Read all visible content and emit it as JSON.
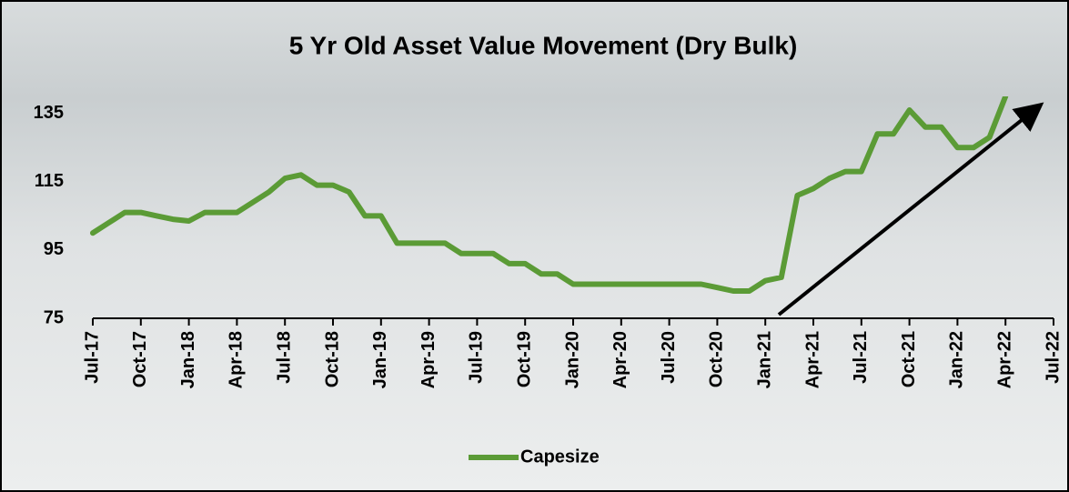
{
  "chart_data": {
    "type": "line",
    "title": "5 Yr Old Asset Value Movement (Dry Bulk)",
    "categories": [
      "Jul-17",
      null,
      null,
      "Oct-17",
      null,
      null,
      "Jan-18",
      null,
      null,
      "Apr-18",
      null,
      null,
      "Jul-18",
      null,
      null,
      "Oct-18",
      null,
      null,
      "Jan-19",
      null,
      null,
      "Apr-19",
      null,
      null,
      "Jul-19",
      null,
      null,
      "Oct-19",
      null,
      null,
      "Jan-20",
      null,
      null,
      "Apr-20",
      null,
      null,
      "Jul-20",
      null,
      null,
      "Oct-20",
      null,
      null,
      "Jan-21",
      null,
      null,
      "Apr-21",
      null,
      null,
      "Jul-21",
      null,
      null,
      "Oct-21",
      null,
      null,
      "Jan-22",
      null,
      null,
      "Apr-22",
      null,
      null,
      "Jul-22"
    ],
    "series": [
      {
        "name": "Capesize",
        "color": "#5b9b36",
        "values": [
          100,
          103,
          106,
          106,
          105,
          104,
          103.5,
          106,
          106,
          106,
          109,
          112,
          116,
          117,
          114,
          114,
          112,
          105,
          105,
          97,
          97,
          97,
          97,
          94,
          94,
          94,
          91,
          91,
          88,
          88,
          85,
          85,
          85,
          85,
          85,
          85,
          85,
          85,
          85,
          84,
          83,
          83,
          86,
          87,
          111,
          113,
          116,
          118,
          118,
          129,
          129,
          136,
          131,
          131,
          125,
          125,
          128,
          140,
          null,
          null,
          null
        ]
      }
    ],
    "ylim": [
      75,
      140
    ],
    "yticks": [
      75,
      95,
      115,
      135
    ],
    "grid": false
  }
}
